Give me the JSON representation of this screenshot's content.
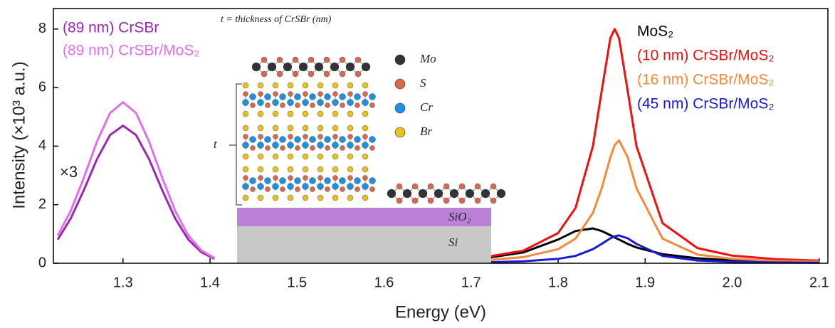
{
  "chart_data": {
    "type": "line",
    "xlabel": "Energy (eV)",
    "ylabel": "Intensity (×10³ a.u.)",
    "xlim": [
      1.22,
      2.11
    ],
    "ylim": [
      0,
      8.7
    ],
    "xticks": [
      1.3,
      1.4,
      1.5,
      1.6,
      1.7,
      1.8,
      1.9,
      {
        "value": 2.0,
        "label": "2.0"
      },
      2.1
    ],
    "yticks": [
      0,
      2,
      4,
      6,
      8
    ],
    "annotations": [
      "×3"
    ],
    "inset": {
      "title": "t = thickness of CrSBr (nm)",
      "atoms": [
        "Mo",
        "S",
        "Cr",
        "Br"
      ],
      "layers": [
        "SiO₂",
        "Si"
      ],
      "thickness": "t"
    },
    "series": [
      {
        "name": "(89 nm) CrSBr",
        "color": "#9b27b0",
        "x": [
          1.225,
          1.24,
          1.255,
          1.27,
          1.285,
          1.3,
          1.315,
          1.33,
          1.345,
          1.36,
          1.375,
          1.39,
          1.405
        ],
        "values": [
          0.81,
          1.53,
          2.5,
          3.55,
          4.38,
          4.7,
          4.38,
          3.55,
          2.5,
          1.53,
          0.81,
          0.38,
          0.15
        ]
      },
      {
        "name": "(89 nm) CrSBr/MoS₂",
        "color": "#e070e8",
        "x": [
          1.225,
          1.24,
          1.255,
          1.27,
          1.285,
          1.3,
          1.315,
          1.33,
          1.345,
          1.36,
          1.375,
          1.39,
          1.405
        ],
        "values": [
          0.95,
          1.79,
          2.92,
          4.15,
          5.13,
          5.5,
          5.13,
          4.15,
          2.92,
          1.79,
          0.95,
          0.44,
          0.18
        ]
      },
      {
        "name": "MoS₂",
        "color": "#000000",
        "x": [
          1.72,
          1.76,
          1.8,
          1.82,
          1.84,
          1.85,
          1.86,
          1.865,
          1.87,
          1.88,
          1.89,
          1.92,
          1.96,
          2.0,
          2.05,
          2.1
        ],
        "values": [
          0.19,
          0.37,
          0.81,
          1.1,
          1.19,
          1.1,
          0.96,
          0.88,
          0.81,
          0.66,
          0.54,
          0.31,
          0.17,
          0.1,
          0.06,
          0.04
        ]
      },
      {
        "name": "(10 nm) CrSBr/MoS₂",
        "color": "#ee1111",
        "x": [
          1.72,
          1.76,
          1.8,
          1.82,
          1.84,
          1.85,
          1.86,
          1.865,
          1.87,
          1.88,
          1.89,
          1.92,
          1.96,
          2.0,
          2.05,
          2.1
        ],
        "values": [
          0.23,
          0.43,
          1.03,
          1.89,
          4.0,
          5.88,
          7.69,
          8.0,
          7.69,
          5.88,
          4.0,
          1.37,
          0.52,
          0.26,
          0.14,
          0.09
        ]
      },
      {
        "name": "(16 nm) CrSBr/MoS₂",
        "color": "#f58a3a",
        "x": [
          1.72,
          1.76,
          1.8,
          1.82,
          1.84,
          1.85,
          1.86,
          1.865,
          1.87,
          1.88,
          1.89,
          1.92,
          1.96,
          2.0,
          2.05,
          2.1
        ],
        "values": [
          0.11,
          0.21,
          0.48,
          0.84,
          1.72,
          2.56,
          3.62,
          4.04,
          4.2,
          3.62,
          2.56,
          0.84,
          0.3,
          0.15,
          0.08,
          0.05
        ]
      },
      {
        "name": "(45 nm) CrSBr/MoS₂",
        "color": "#1a1adc",
        "x": [
          1.72,
          1.76,
          1.8,
          1.82,
          1.84,
          1.85,
          1.86,
          1.865,
          1.87,
          1.88,
          1.89,
          1.92,
          1.96,
          2.0,
          2.05,
          2.1
        ],
        "values": [
          0.035,
          0.066,
          0.15,
          0.25,
          0.48,
          0.66,
          0.85,
          0.92,
          0.95,
          0.85,
          0.66,
          0.25,
          0.095,
          0.048,
          0.026,
          0.016
        ]
      }
    ]
  }
}
